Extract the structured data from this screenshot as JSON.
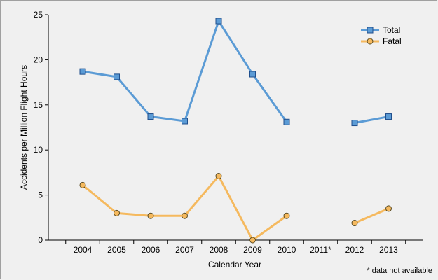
{
  "chart_data": {
    "type": "line",
    "title": "",
    "xlabel": "Calendar Year",
    "ylabel": "Accidents per Million Flight Hours",
    "categories": [
      "2004",
      "2005",
      "2006",
      "2007",
      "2008",
      "2009",
      "2010",
      "2011*",
      "2012",
      "2013"
    ],
    "ylim": [
      0,
      25
    ],
    "yticks": [
      0,
      5,
      10,
      15,
      20,
      25
    ],
    "grid": false,
    "legend_position": "top-right",
    "series": [
      {
        "name": "Total",
        "color": "#5b9bd5",
        "marker": "square",
        "values": [
          18.7,
          18.1,
          13.7,
          13.2,
          24.3,
          18.4,
          13.1,
          null,
          13.0,
          13.7
        ]
      },
      {
        "name": "Fatal",
        "color": "#f5b95e",
        "marker": "circle",
        "values": [
          6.1,
          3.0,
          2.7,
          2.7,
          7.1,
          0.0,
          2.7,
          null,
          1.9,
          3.5
        ]
      }
    ],
    "footnote": "* data not available"
  }
}
